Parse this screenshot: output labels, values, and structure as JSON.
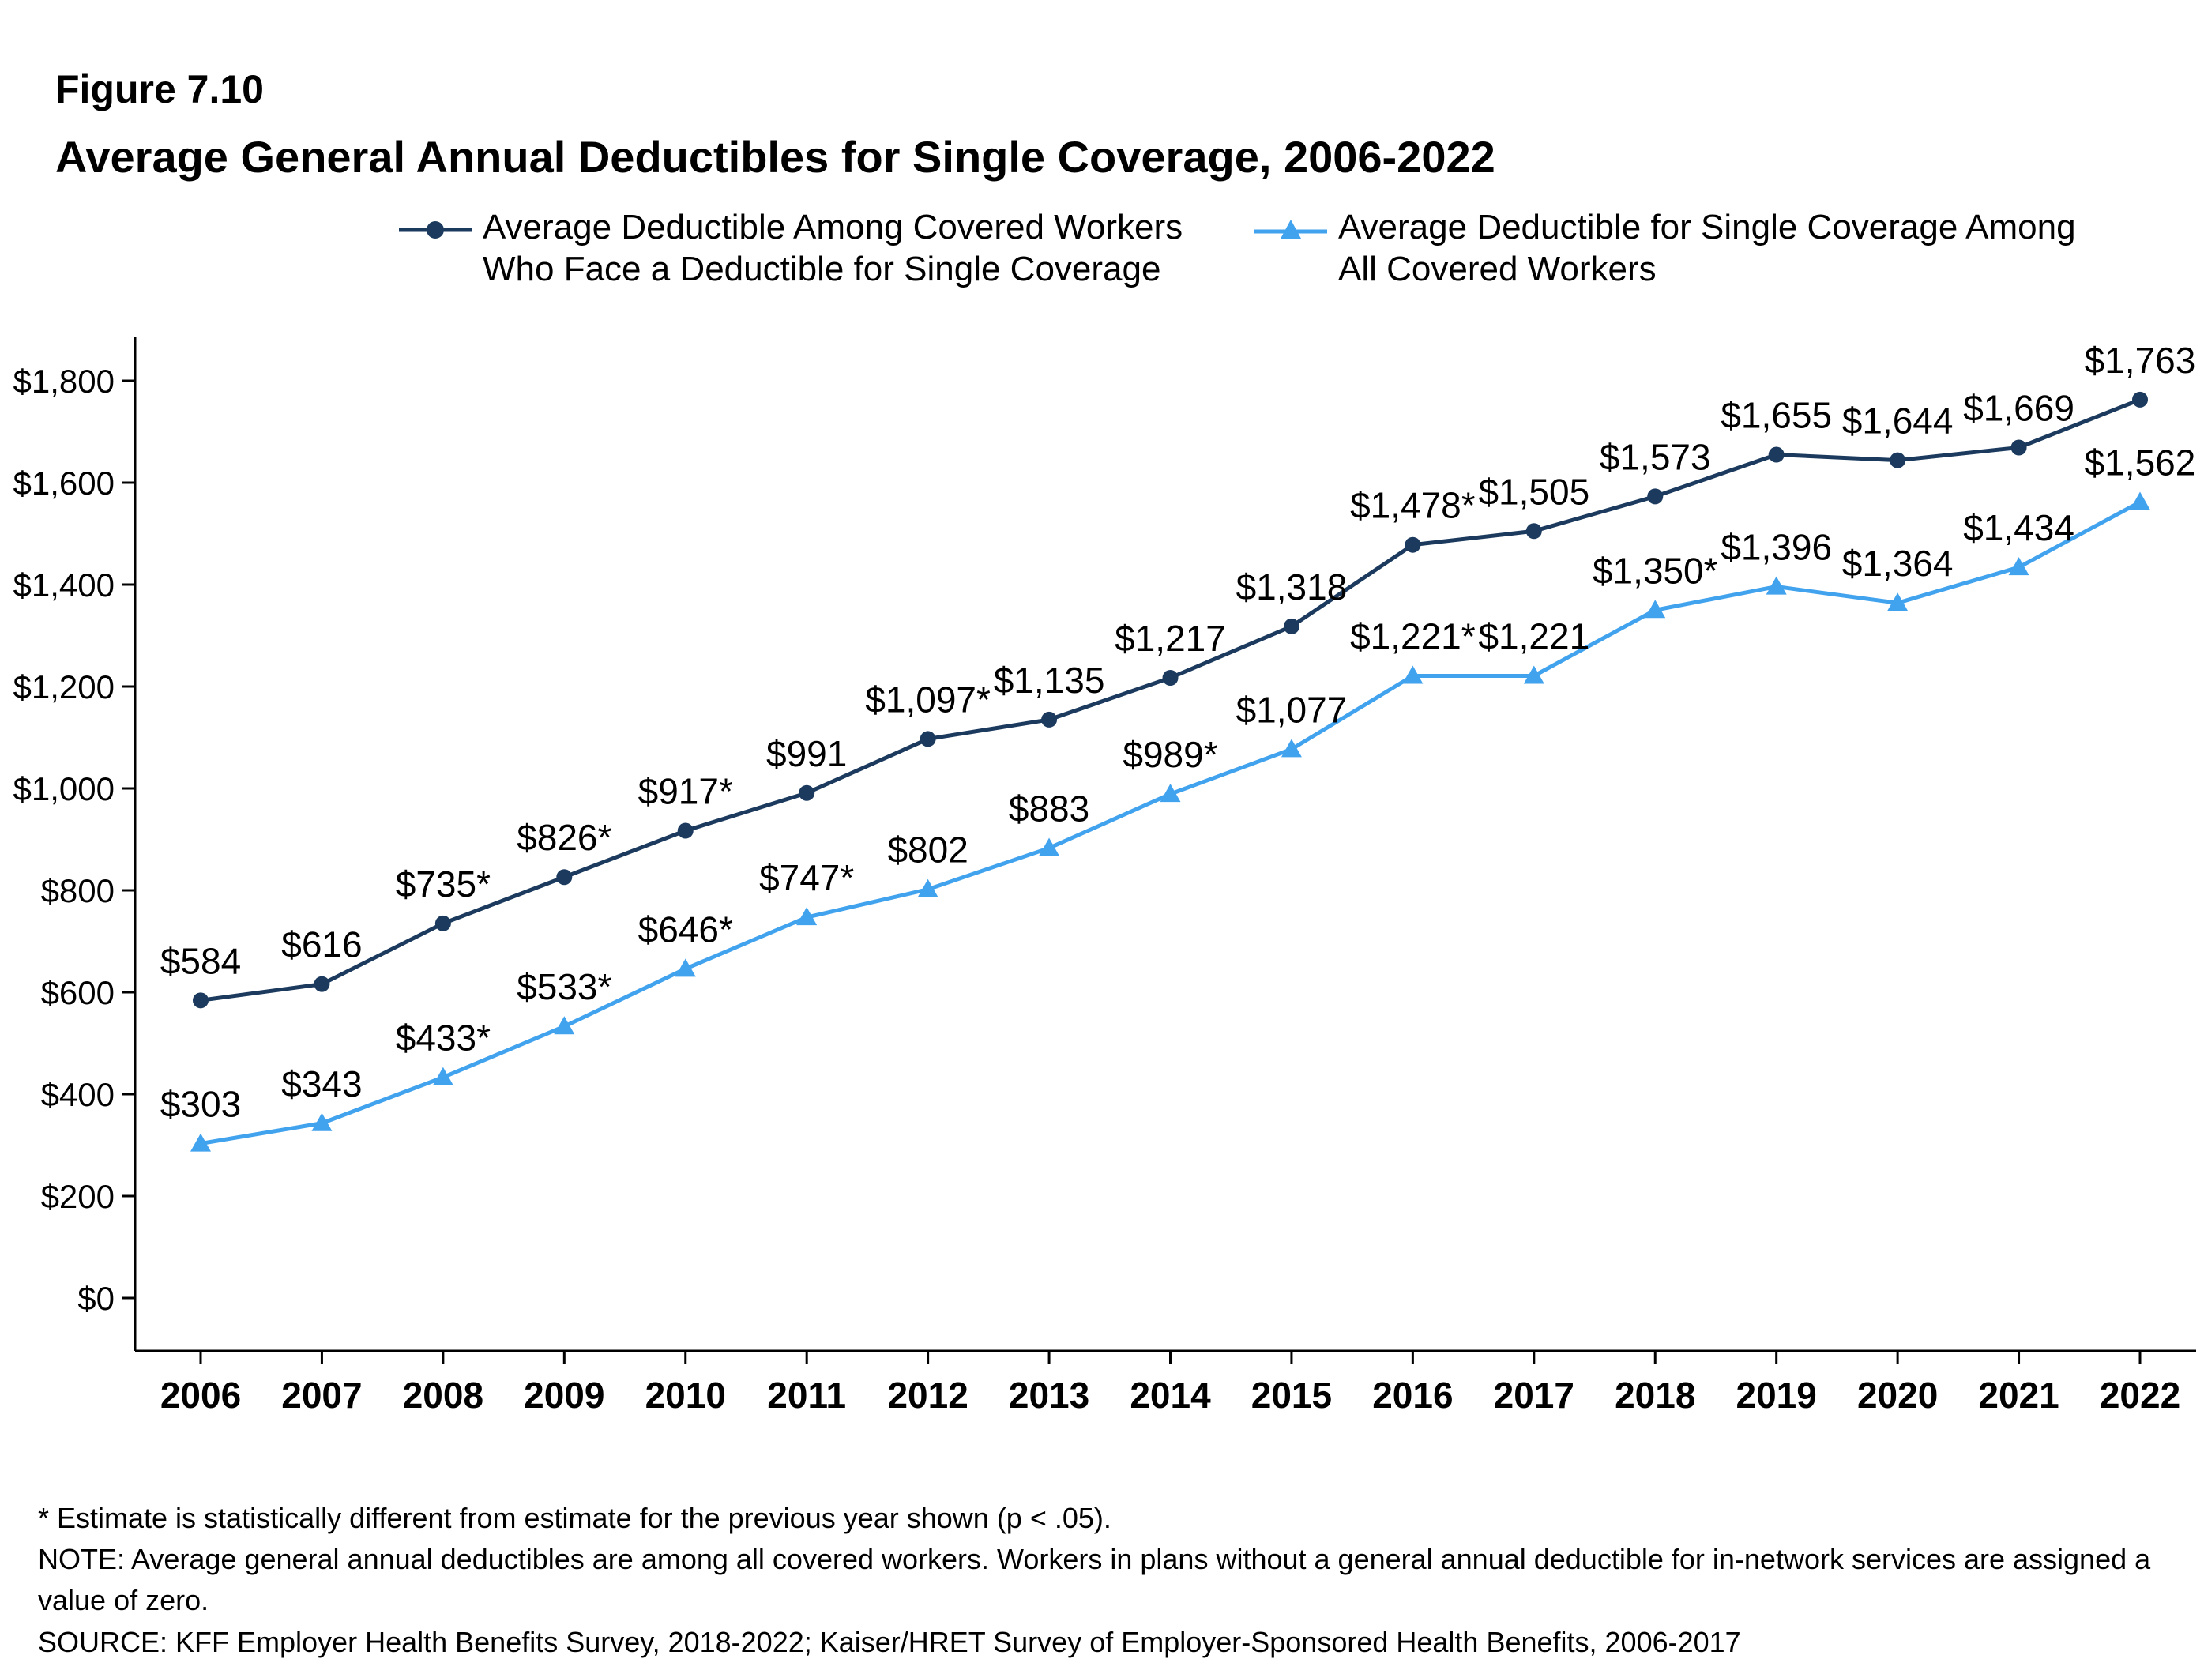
{
  "figure_label": "Figure 7.10",
  "title": "Average General Annual Deductibles for Single Coverage, 2006-2022",
  "colors": {
    "series1": "#1b3a5e",
    "series2": "#41a2ee",
    "axis": "#000000",
    "label_text": "#000000"
  },
  "legend": {
    "items": [
      {
        "label": "Average Deductible Among Covered Workers Who Face a Deductible for Single Coverage",
        "marker": "circle-line",
        "color": "#1b3a5e"
      },
      {
        "label": "Average Deductible for Single Coverage Among All Covered Workers",
        "marker": "triangle-line",
        "color": "#41a2ee"
      }
    ]
  },
  "chart_data": {
    "type": "line",
    "x": [
      2006,
      2007,
      2008,
      2009,
      2010,
      2011,
      2012,
      2013,
      2014,
      2015,
      2016,
      2017,
      2018,
      2019,
      2020,
      2021,
      2022
    ],
    "series": [
      {
        "name": "Average Deductible Among Covered Workers Who Face a Deductible for Single Coverage",
        "marker": "circle",
        "color": "#1b3a5e",
        "values": [
          584,
          616,
          735,
          826,
          917,
          991,
          1097,
          1135,
          1217,
          1318,
          1478,
          1505,
          1573,
          1655,
          1644,
          1669,
          1763
        ],
        "labels": [
          "$584",
          "$616",
          "$735*",
          "$826*",
          "$917*",
          "$991",
          "$1,097*",
          "$1,135",
          "$1,217",
          "$1,318",
          "$1,478*",
          "$1,505",
          "$1,573",
          "$1,655",
          "$1,644",
          "$1,669",
          "$1,763"
        ]
      },
      {
        "name": "Average Deductible for Single Coverage Among All Covered Workers",
        "marker": "triangle",
        "color": "#41a2ee",
        "values": [
          303,
          343,
          433,
          533,
          646,
          747,
          802,
          883,
          989,
          1077,
          1221,
          1221,
          1350,
          1396,
          1364,
          1434,
          1562
        ],
        "labels": [
          "$303",
          "$343",
          "$433*",
          "$533*",
          "$646*",
          "$747*",
          "$802",
          "$883",
          "$989*",
          "$1,077",
          "$1,221*",
          "$1,221",
          "$1,350*",
          "$1,396",
          "$1,364",
          "$1,434",
          "$1,562"
        ]
      }
    ],
    "ylim": [
      0,
      1800
    ],
    "yticks": [
      {
        "value": 0,
        "label": "$0"
      },
      {
        "value": 200,
        "label": "$200"
      },
      {
        "value": 400,
        "label": "$400"
      },
      {
        "value": 600,
        "label": "$600"
      },
      {
        "value": 800,
        "label": "$800"
      },
      {
        "value": 1000,
        "label": "$1,000"
      },
      {
        "value": 1200,
        "label": "$1,200"
      },
      {
        "value": 1400,
        "label": "$1,400"
      },
      {
        "value": 1600,
        "label": "$1,600"
      },
      {
        "value": 1800,
        "label": "$1,800"
      }
    ],
    "grid": false,
    "legend_position": "top"
  },
  "footnotes": [
    "* Estimate is statistically different from estimate for the previous year shown (p < .05).",
    "NOTE: Average general annual deductibles are among all covered workers. Workers in plans without a general annual deductible for in-network services are assigned a value of zero.",
    "SOURCE: KFF Employer Health Benefits Survey, 2018-2022; Kaiser/HRET Survey of Employer-Sponsored Health Benefits, 2006-2017"
  ]
}
